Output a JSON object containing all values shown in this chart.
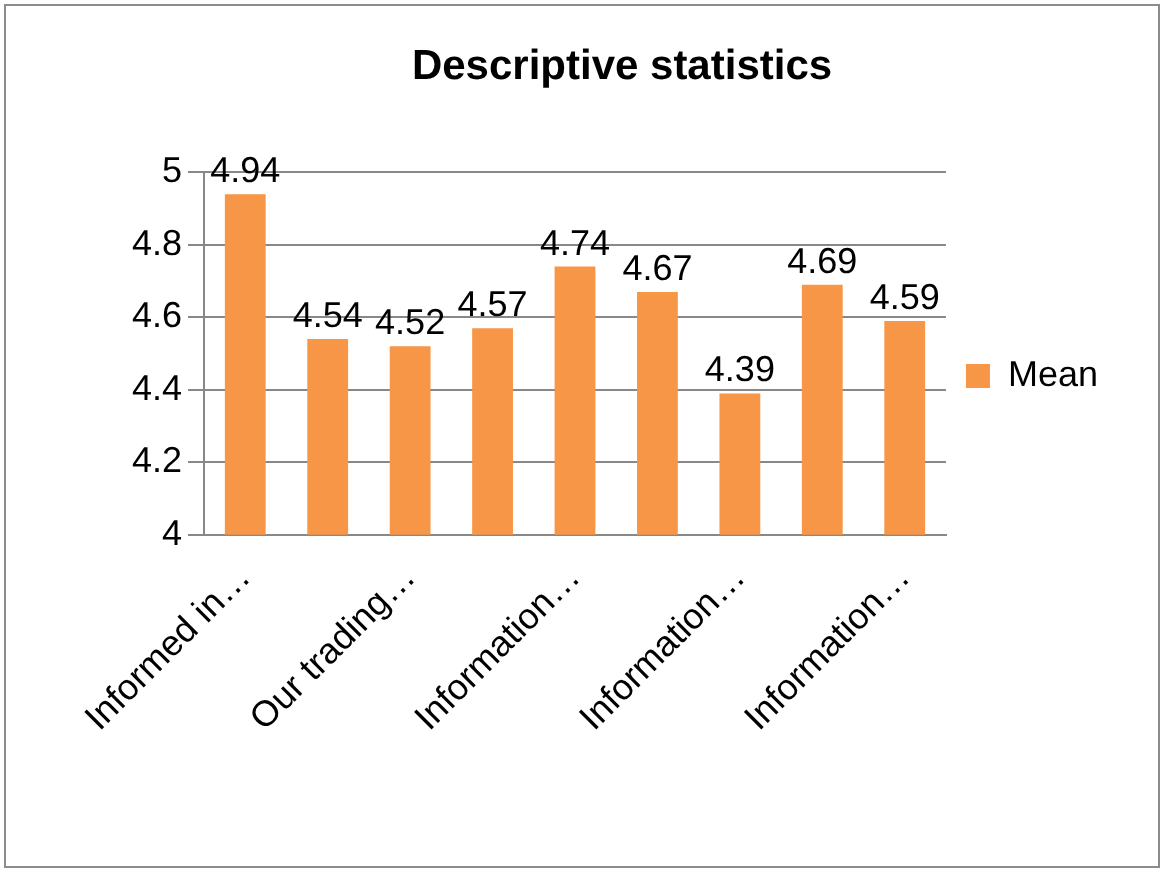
{
  "chart_data": {
    "type": "bar",
    "title": "Descriptive statistics",
    "categories": [
      "Informed in…",
      null,
      "Our trading…",
      null,
      "Information…",
      null,
      "Information…",
      null,
      "Information…"
    ],
    "series": [
      {
        "name": "Mean",
        "color": "#f79646",
        "values": [
          4.94,
          4.54,
          4.52,
          4.57,
          4.74,
          4.67,
          4.39,
          4.69,
          4.59
        ]
      }
    ],
    "ylim": [
      4,
      5
    ],
    "yticks": [
      4,
      4.2,
      4.4,
      4.6,
      4.8,
      5
    ],
    "grid": "y",
    "legend": "right",
    "data_labels": true
  }
}
